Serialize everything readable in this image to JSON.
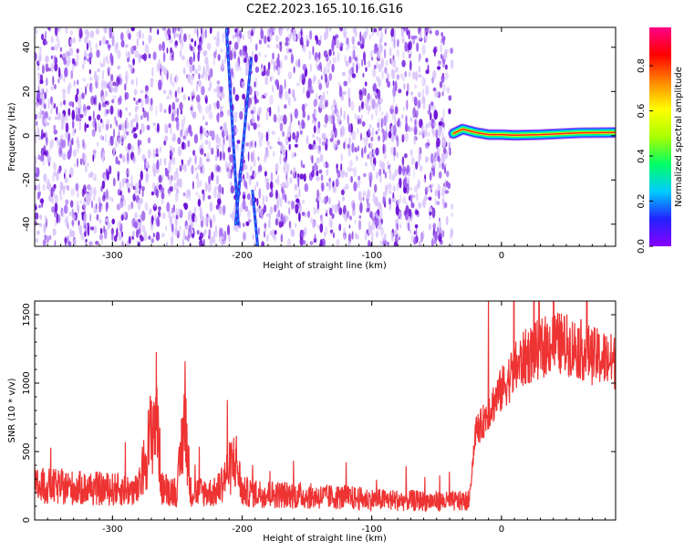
{
  "title": "C2E2.2023.165.10.16.G16",
  "colors": {
    "snr_line": "#ee3333",
    "spectrogram_bg": "#ffffff",
    "speckle_dark": "#6a0fd6",
    "speckle_mid": "#9b5cf0",
    "speckle_light": "#d9c4fb"
  },
  "chart_data": [
    {
      "type": "heatmap",
      "xlabel": "Height of straight line (km)",
      "ylabel": "Frequency (Hz)",
      "xlim": [
        -360,
        88
      ],
      "ylim": [
        -50,
        49
      ],
      "xticks": [
        -300,
        -200,
        -100,
        0
      ],
      "yticks": [
        40,
        20,
        0,
        -20,
        -40
      ],
      "noise_region_x": [
        -360,
        -38
      ],
      "blank_region_x": [
        -38,
        88
      ],
      "streaks": [
        {
          "x": [
            -212,
            -203
          ],
          "y": [
            48,
            -40
          ]
        },
        {
          "x": [
            -205,
            -193
          ],
          "y": [
            -40,
            35
          ]
        },
        {
          "x": [
            -192,
            -188
          ],
          "y": [
            -25,
            -50
          ]
        }
      ],
      "signal_band": {
        "x": [
          -37,
          -30,
          -20,
          -10,
          0,
          10,
          30,
          60,
          88
        ],
        "y": [
          1,
          3,
          1.5,
          0.5,
          0.5,
          0.2,
          0.5,
          1.3,
          1.5
        ],
        "peak_amplitude": 1.0
      },
      "colorbar": {
        "label": "Normalized spectral amplitude",
        "range": [
          0,
          0.97
        ],
        "ticks": [
          0.0,
          0.2,
          0.4,
          0.6,
          0.8
        ],
        "stops": [
          "#8800ff",
          "#2222ff",
          "#00ccff",
          "#00ff66",
          "#aaff00",
          "#ffff00",
          "#ff8800",
          "#ff0000",
          "#ff0088"
        ]
      }
    },
    {
      "type": "line",
      "xlabel": "Height of straight line (km)",
      "ylabel": "SNR (10 * v/v)",
      "xlim": [
        -360,
        88
      ],
      "ylim": [
        0,
        1600
      ],
      "xticks": [
        -300,
        -200,
        -100,
        0
      ],
      "yticks": [
        0,
        500,
        1000,
        1500
      ],
      "series": [
        {
          "x": [
            -360,
            -340,
            -320,
            -300,
            -280,
            -266,
            -262,
            -250,
            -244,
            -240,
            -220,
            -205,
            -200,
            -180,
            -160,
            -140,
            -120,
            -100,
            -80,
            -60,
            -40,
            -25,
            -20,
            -15,
            -10,
            0,
            10,
            20,
            30,
            40,
            50,
            60,
            70,
            80,
            88
          ],
          "y": [
            250,
            240,
            230,
            225,
            215,
            820,
            230,
            210,
            800,
            210,
            200,
            450,
            205,
            190,
            180,
            170,
            165,
            150,
            145,
            140,
            135,
            140,
            650,
            700,
            800,
            950,
            1100,
            1200,
            1250,
            1300,
            1280,
            1250,
            1200,
            1180,
            1150
          ]
        }
      ]
    }
  ]
}
